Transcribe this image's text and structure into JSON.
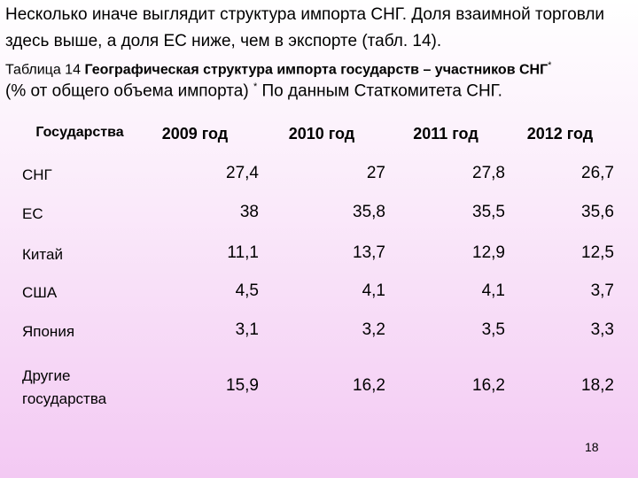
{
  "paragraph": [
    "Несколько иначе выглядит структура импорта СНГ. Доля взаимной торговли",
    "здесь выше, а доля ЕС ниже, чем в экспорте (табл. 14)."
  ],
  "caption": {
    "line1": [
      "Таблица 14",
      "Географическая структура импорта государств – участников СНГ",
      "*"
    ],
    "line2": [
      "(% от общего объема импорта)",
      "*",
      "По данным Статкомитета СНГ."
    ]
  },
  "table": {
    "header": [
      "Государства",
      "2009 год",
      "2010 год",
      "2011 год",
      "2012 год"
    ],
    "rows": [
      [
        "СНГ",
        "27,4",
        "27",
        "27,8",
        "26,7"
      ],
      [
        "ЕС",
        "38",
        "35,8",
        "35,5",
        "35,6"
      ],
      [
        "Китай",
        "11,1",
        "13,7",
        "12,9",
        "12,5"
      ],
      [
        "США",
        "4,5",
        "4,1",
        "4,1",
        "3,7"
      ],
      [
        "Япония",
        "3,1",
        "3,2",
        "3,5",
        "3,3"
      ],
      [
        "Другие государства",
        "15,9",
        "16,2",
        "16,2",
        "18,2"
      ]
    ]
  },
  "page_number": "18"
}
